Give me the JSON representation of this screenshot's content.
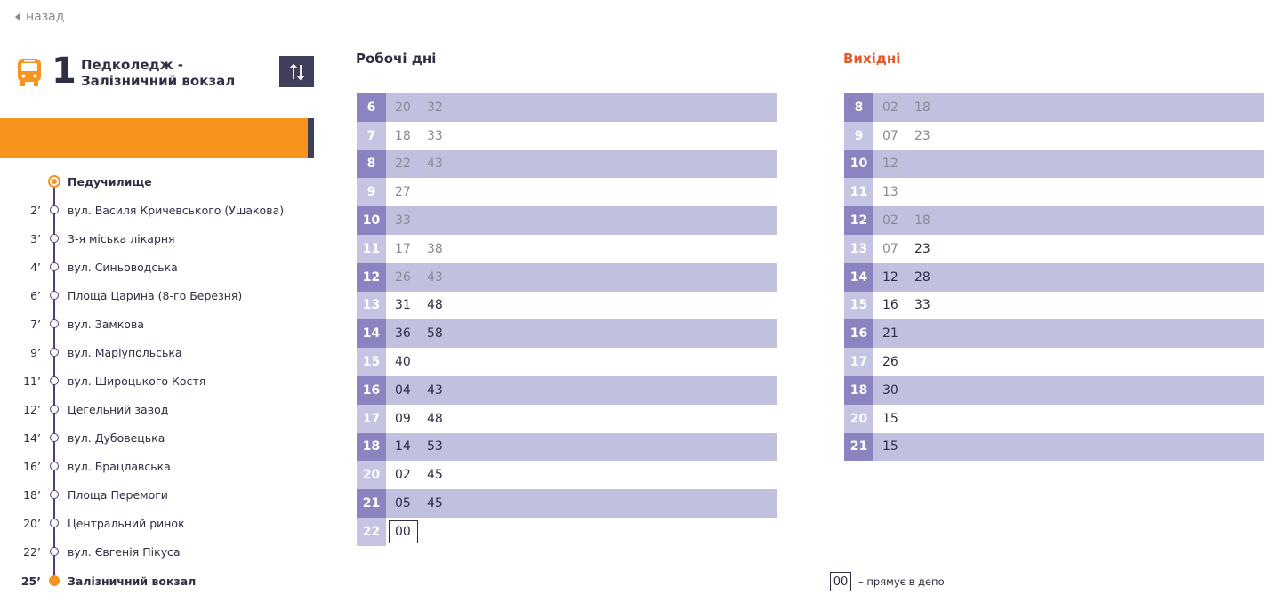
{
  "nav": {
    "back_label": "назад"
  },
  "route": {
    "number": "1",
    "name_line1": "Педколедж -",
    "name_line2": "Залізничний вокзал",
    "swap_icon": "swap-vertical-icon",
    "brand_color": "#f7941d"
  },
  "stops": [
    {
      "time": "",
      "name": "Педучилище"
    },
    {
      "time": "2’",
      "name": "вул. Василя Кричевського (Ушакова)"
    },
    {
      "time": "3’",
      "name": "3-я міська лікарня"
    },
    {
      "time": "4’",
      "name": "вул. Синьоводська"
    },
    {
      "time": "6’",
      "name": "Площа Царина (8-го Березня)"
    },
    {
      "time": "7’",
      "name": "вул. Замкова"
    },
    {
      "time": "9’",
      "name": "вул. Маріупольська"
    },
    {
      "time": "11’",
      "name": "вул. Широцького Костя"
    },
    {
      "time": "12’",
      "name": "Цегельний завод"
    },
    {
      "time": "14’",
      "name": "вул. Дубовецька"
    },
    {
      "time": "16’",
      "name": "вул. Брацлавська"
    },
    {
      "time": "18’",
      "name": "Площа Перемоги"
    },
    {
      "time": "20’",
      "name": "Центральний ринок"
    },
    {
      "time": "22’",
      "name": "вул. Євгенія Пікуса"
    },
    {
      "time": "25’",
      "name": "Залізничний вокзал"
    }
  ],
  "weekdays": {
    "title": "Робочі дні",
    "title_color": "#2e2e44",
    "rows": [
      {
        "hour": "6",
        "minutes": [
          "20",
          "32"
        ],
        "past": true
      },
      {
        "hour": "7",
        "minutes": [
          "18",
          "33"
        ],
        "past": true
      },
      {
        "hour": "8",
        "minutes": [
          "22",
          "43"
        ],
        "past": true
      },
      {
        "hour": "9",
        "minutes": [
          "27"
        ],
        "past": true
      },
      {
        "hour": "10",
        "minutes": [
          "33"
        ],
        "past": true
      },
      {
        "hour": "11",
        "minutes": [
          "17",
          "38"
        ],
        "past": true
      },
      {
        "hour": "12",
        "minutes": [
          "26",
          "43"
        ],
        "past": true
      },
      {
        "hour": "13",
        "minutes": [
          "31",
          "48"
        ],
        "past": false
      },
      {
        "hour": "14",
        "minutes": [
          "36",
          "58"
        ],
        "past": false
      },
      {
        "hour": "15",
        "minutes": [
          "40"
        ],
        "past": false
      },
      {
        "hour": "16",
        "minutes": [
          "04",
          "43"
        ],
        "past": false
      },
      {
        "hour": "17",
        "minutes": [
          "09",
          "48"
        ],
        "past": false
      },
      {
        "hour": "18",
        "minutes": [
          "14",
          "53"
        ],
        "past": false
      },
      {
        "hour": "20",
        "minutes": [
          "02",
          "45"
        ],
        "past": false
      },
      {
        "hour": "21",
        "minutes": [
          "05",
          "45"
        ],
        "past": false
      },
      {
        "hour": "22",
        "minutes": [
          "00"
        ],
        "past": false,
        "depot": true
      }
    ]
  },
  "weekends": {
    "title": "Вихідні",
    "title_color": "#e8582a",
    "rows": [
      {
        "hour": "8",
        "minutes": [
          "02",
          "18"
        ],
        "past": true
      },
      {
        "hour": "9",
        "minutes": [
          "07",
          "23"
        ],
        "past": true
      },
      {
        "hour": "10",
        "minutes": [
          "12"
        ],
        "past": true
      },
      {
        "hour": "11",
        "minutes": [
          "13"
        ],
        "past": true
      },
      {
        "hour": "12",
        "minutes": [
          "02",
          "18"
        ],
        "past": true
      },
      {
        "hour": "13",
        "minutes": [
          "07",
          "23"
        ],
        "past_first_only": true
      },
      {
        "hour": "14",
        "minutes": [
          "12",
          "28"
        ],
        "past": false
      },
      {
        "hour": "15",
        "minutes": [
          "16",
          "33"
        ],
        "past": false
      },
      {
        "hour": "16",
        "minutes": [
          "21"
        ],
        "past": false
      },
      {
        "hour": "17",
        "minutes": [
          "26"
        ],
        "past": false
      },
      {
        "hour": "18",
        "minutes": [
          "30"
        ],
        "past": false
      },
      {
        "hour": "20",
        "minutes": [
          "15"
        ],
        "past": false
      },
      {
        "hour": "21",
        "minutes": [
          "15"
        ],
        "past": false
      }
    ]
  },
  "legend": {
    "sample": "00",
    "text": "– прямує в депо"
  }
}
